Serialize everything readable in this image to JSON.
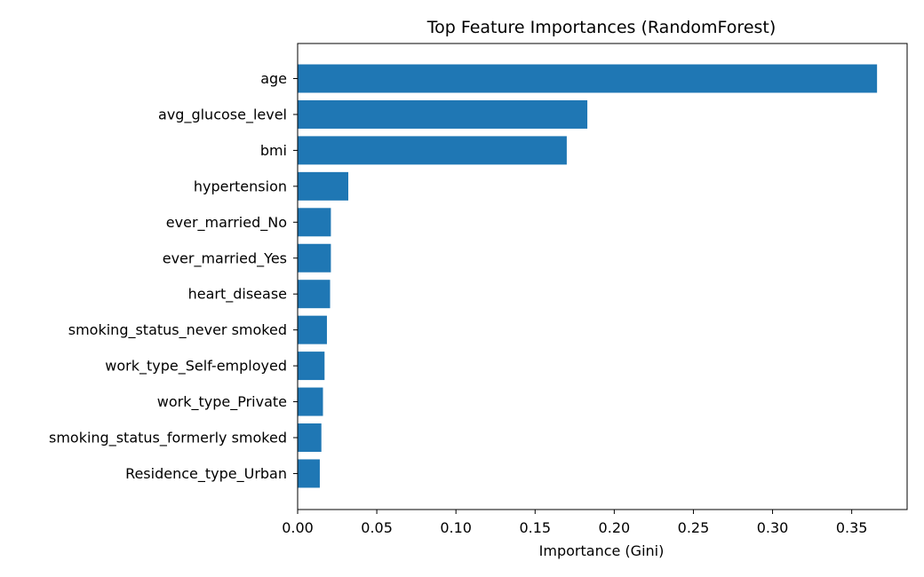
{
  "colors": {
    "bar": "#1f77b4",
    "axis": "#000000",
    "background": "#ffffff"
  },
  "chart_data": {
    "type": "bar",
    "orientation": "horizontal",
    "title": "Top Feature Importances (RandomForest)",
    "xlabel": "Importance (Gini)",
    "ylabel": "",
    "xlim": [
      0,
      0.385
    ],
    "xticks": [
      "0.00",
      "0.05",
      "0.10",
      "0.15",
      "0.20",
      "0.25",
      "0.30",
      "0.35"
    ],
    "grid": false,
    "categories": [
      "age",
      "avg_glucose_level",
      "bmi",
      "hypertension",
      "ever_married_No",
      "ever_married_Yes",
      "heart_disease",
      "smoking_status_never smoked",
      "work_type_Self-employed",
      "work_type_Private",
      "smoking_status_formerly smoked",
      "Residence_type_Urban"
    ],
    "values": [
      0.366,
      0.183,
      0.17,
      0.032,
      0.021,
      0.021,
      0.0205,
      0.0185,
      0.017,
      0.016,
      0.015,
      0.014
    ]
  }
}
